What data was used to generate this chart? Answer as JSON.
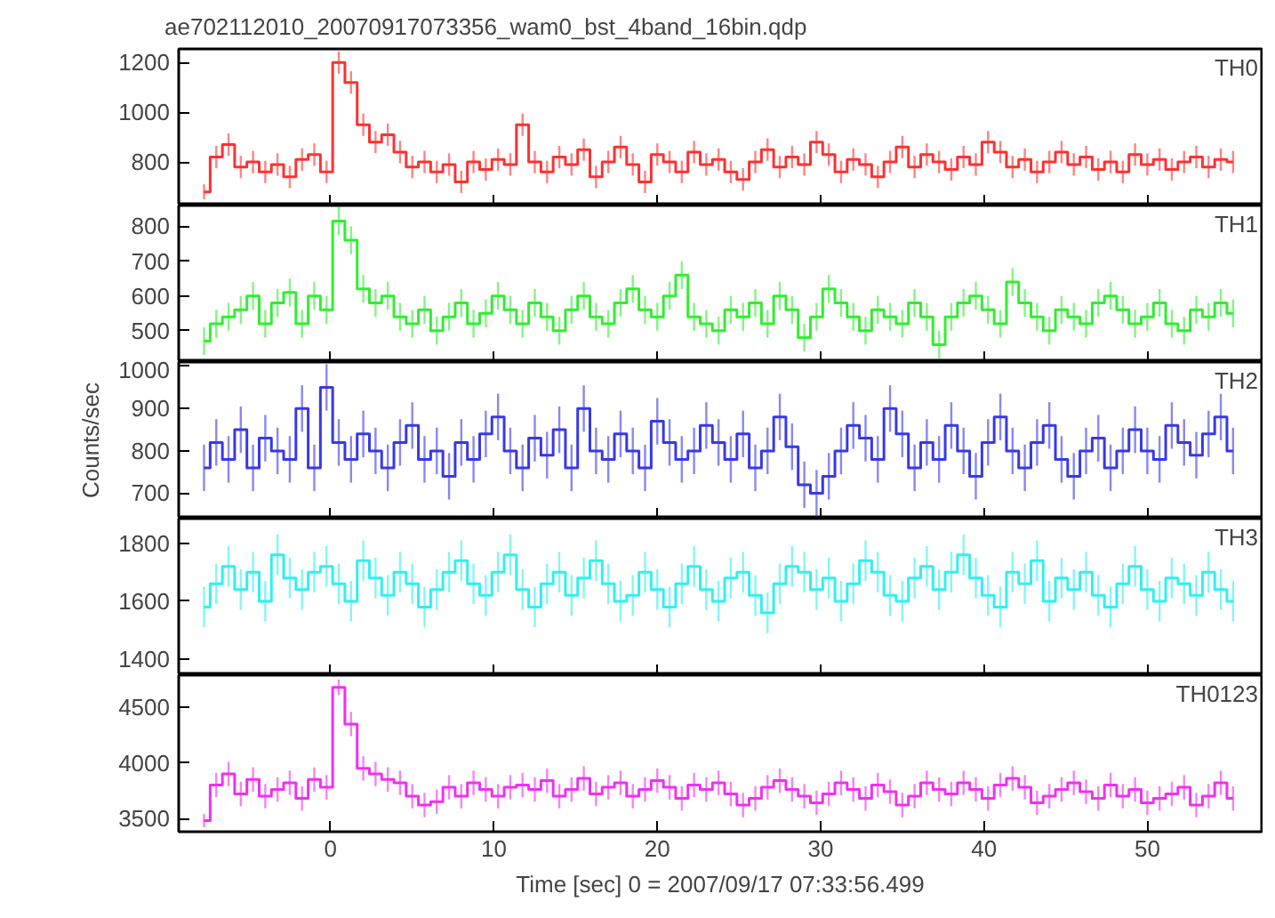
{
  "chart_data": [
    {
      "type": "step",
      "title": "ae702112010_20070917073356_wam0_bst_4band_16bin.qdp",
      "x": [
        -7.75,
        -7,
        -6.25,
        -5.5,
        -4.75,
        -4,
        -3.25,
        -2.5,
        -1.75,
        -1,
        -0.25,
        0.5,
        1.25,
        2,
        2.75,
        3.5,
        4.25,
        5,
        5.75,
        6.5,
        7.25,
        8,
        8.75,
        9.5,
        10.25,
        11,
        11.75,
        12.5,
        13.25,
        14,
        14.75,
        15.5,
        16.25,
        17,
        17.75,
        18.5,
        19.25,
        20,
        20.75,
        21.5,
        22.25,
        23,
        23.75,
        24.5,
        25.25,
        26,
        26.75,
        27.5,
        28.25,
        29,
        29.75,
        30.5,
        31.25,
        32,
        32.75,
        33.5,
        34.25,
        35,
        35.75,
        36.5,
        37.25,
        38,
        38.75,
        39.5,
        40.25,
        41,
        41.75,
        42.5,
        43.25,
        44,
        44.75,
        45.5,
        46.25,
        47,
        47.75,
        48.5,
        49.25,
        50,
        50.75,
        51.5,
        52.25,
        53,
        53.75,
        54.5,
        55.25
      ],
      "xlim": [
        -9.3,
        57
      ],
      "xticks": [
        0,
        10,
        20,
        30,
        40,
        50
      ],
      "ylim": [
        625,
        1255
      ],
      "yticks": [
        800,
        1000,
        1200
      ],
      "tick_labels": "y",
      "legend": "top right",
      "grid": false,
      "series": [
        {
          "name": "TH0",
          "color": "#ff3030",
          "values": [
            680,
            820,
            870,
            780,
            800,
            760,
            790,
            740,
            810,
            830,
            760,
            1200,
            1120,
            950,
            880,
            910,
            840,
            780,
            800,
            760,
            790,
            720,
            800,
            770,
            810,
            790,
            950,
            800,
            760,
            820,
            790,
            850,
            740,
            800,
            860,
            790,
            720,
            830,
            800,
            760,
            840,
            790,
            810,
            760,
            730,
            800,
            850,
            780,
            820,
            790,
            880,
            830,
            760,
            810,
            790,
            740,
            800,
            860,
            780,
            830,
            800,
            770,
            820,
            790,
            880,
            840,
            780,
            810,
            760,
            800,
            840,
            790,
            820,
            770,
            800,
            760,
            830,
            790,
            810,
            770,
            800,
            820,
            780,
            810,
            800
          ],
          "errors": [
            30,
            45,
            45,
            45,
            45,
            45,
            45,
            45,
            45,
            45,
            45,
            45,
            45,
            45,
            45,
            45,
            45,
            45,
            45,
            45,
            45,
            45,
            45,
            45,
            45,
            45,
            45,
            45,
            45,
            45,
            45,
            45,
            45,
            45,
            45,
            45,
            45,
            45,
            45,
            45,
            45,
            45,
            45,
            45,
            45,
            45,
            45,
            45,
            45,
            45,
            45,
            45,
            45,
            45,
            45,
            45,
            45,
            45,
            45,
            45,
            45,
            45,
            45,
            45,
            45,
            45,
            45,
            45,
            45,
            45,
            45,
            45,
            45,
            45,
            45,
            45,
            45,
            45,
            45,
            45,
            45,
            45,
            45,
            45,
            45
          ]
        }
      ]
    },
    {
      "type": "step",
      "x": [
        -7.75,
        -7,
        -6.25,
        -5.5,
        -4.75,
        -4,
        -3.25,
        -2.5,
        -1.75,
        -1,
        -0.25,
        0.5,
        1.25,
        2,
        2.75,
        3.5,
        4.25,
        5,
        5.75,
        6.5,
        7.25,
        8,
        8.75,
        9.5,
        10.25,
        11,
        11.75,
        12.5,
        13.25,
        14,
        14.75,
        15.5,
        16.25,
        17,
        17.75,
        18.5,
        19.25,
        20,
        20.75,
        21.5,
        22.25,
        23,
        23.75,
        24.5,
        25.25,
        26,
        26.75,
        27.5,
        28.25,
        29,
        29.75,
        30.5,
        31.25,
        32,
        32.75,
        33.5,
        34.25,
        35,
        35.75,
        36.5,
        37.25,
        38,
        38.75,
        39.5,
        40.25,
        41,
        41.75,
        42.5,
        43.25,
        44,
        44.75,
        45.5,
        46.25,
        47,
        47.75,
        48.5,
        49.25,
        50,
        50.75,
        51.5,
        52.25,
        53,
        53.75,
        54.5,
        55.25
      ],
      "xlim": [
        -9.3,
        57
      ],
      "xticks": [
        0,
        10,
        20,
        30,
        40,
        50
      ],
      "ylim": [
        410,
        860
      ],
      "yticks": [
        500,
        600,
        700,
        800
      ],
      "tick_labels": "y",
      "legend": "top right",
      "grid": false,
      "series": [
        {
          "name": "TH1",
          "color": "#30ee30",
          "values": [
            470,
            520,
            540,
            560,
            600,
            520,
            580,
            610,
            520,
            600,
            560,
            815,
            760,
            620,
            580,
            600,
            540,
            520,
            560,
            500,
            540,
            580,
            520,
            550,
            600,
            560,
            520,
            580,
            540,
            500,
            560,
            600,
            540,
            520,
            580,
            620,
            560,
            540,
            600,
            660,
            540,
            520,
            500,
            560,
            540,
            580,
            520,
            600,
            560,
            480,
            540,
            620,
            580,
            540,
            500,
            560,
            540,
            520,
            580,
            540,
            460,
            540,
            580,
            600,
            560,
            520,
            640,
            580,
            540,
            500,
            560,
            540,
            520,
            580,
            600,
            560,
            520,
            540,
            580,
            520,
            500,
            560,
            540,
            580,
            550
          ],
          "errors": [
            40,
            40,
            40,
            40,
            40,
            40,
            40,
            40,
            40,
            40,
            40,
            40,
            40,
            40,
            40,
            40,
            40,
            40,
            40,
            40,
            40,
            40,
            40,
            40,
            40,
            40,
            40,
            40,
            40,
            40,
            40,
            40,
            40,
            40,
            40,
            40,
            40,
            40,
            40,
            40,
            40,
            40,
            40,
            40,
            40,
            40,
            40,
            40,
            40,
            40,
            40,
            40,
            40,
            40,
            40,
            40,
            40,
            40,
            40,
            40,
            40,
            40,
            40,
            40,
            40,
            40,
            40,
            40,
            40,
            40,
            40,
            40,
            40,
            40,
            40,
            40,
            40,
            40,
            40,
            40,
            40,
            40,
            40,
            40,
            40
          ]
        }
      ]
    },
    {
      "type": "step",
      "ylabel": "Counts/sec",
      "x": [
        -7.75,
        -7,
        -6.25,
        -5.5,
        -4.75,
        -4,
        -3.25,
        -2.5,
        -1.75,
        -1,
        -0.25,
        0.5,
        1.25,
        2,
        2.75,
        3.5,
        4.25,
        5,
        5.75,
        6.5,
        7.25,
        8,
        8.75,
        9.5,
        10.25,
        11,
        11.75,
        12.5,
        13.25,
        14,
        14.75,
        15.5,
        16.25,
        17,
        17.75,
        18.5,
        19.25,
        20,
        20.75,
        21.5,
        22.25,
        23,
        23.75,
        24.5,
        25.25,
        26,
        26.75,
        27.5,
        28.25,
        29,
        29.75,
        30.5,
        31.25,
        32,
        32.75,
        33.5,
        34.25,
        35,
        35.75,
        36.5,
        37.25,
        38,
        38.75,
        39.5,
        40.25,
        41,
        41.75,
        42.5,
        43.25,
        44,
        44.75,
        45.5,
        46.25,
        47,
        47.75,
        48.5,
        49.25,
        50,
        50.75,
        51.5,
        52.25,
        53,
        53.75,
        54.5,
        55.25
      ],
      "xlim": [
        -9.3,
        57
      ],
      "xticks": [
        0,
        10,
        20,
        30,
        40,
        50
      ],
      "ylim": [
        640,
        1010
      ],
      "yticks": [
        700,
        800,
        900,
        1000
      ],
      "tick_labels": "y",
      "legend": "top right",
      "grid": false,
      "series": [
        {
          "name": "TH2",
          "color": "#3838e8",
          "values": [
            760,
            820,
            780,
            850,
            760,
            830,
            800,
            780,
            900,
            760,
            950,
            820,
            780,
            840,
            800,
            760,
            820,
            860,
            780,
            800,
            740,
            820,
            780,
            840,
            880,
            800,
            760,
            830,
            790,
            850,
            760,
            900,
            800,
            780,
            840,
            800,
            760,
            870,
            820,
            780,
            800,
            860,
            820,
            780,
            840,
            760,
            800,
            880,
            810,
            720,
            700,
            740,
            800,
            860,
            830,
            780,
            900,
            840,
            760,
            820,
            780,
            860,
            800,
            740,
            820,
            880,
            800,
            760,
            820,
            860,
            780,
            740,
            800,
            830,
            760,
            800,
            850,
            800,
            780,
            860,
            820,
            790,
            840,
            880,
            800
          ],
          "errors": [
            55,
            55,
            55,
            55,
            55,
            55,
            55,
            55,
            55,
            55,
            55,
            55,
            55,
            55,
            55,
            55,
            55,
            55,
            55,
            55,
            55,
            55,
            55,
            55,
            55,
            55,
            55,
            55,
            55,
            55,
            55,
            55,
            55,
            55,
            55,
            55,
            55,
            55,
            55,
            55,
            55,
            55,
            55,
            55,
            55,
            55,
            55,
            55,
            55,
            55,
            55,
            55,
            55,
            55,
            55,
            55,
            55,
            55,
            55,
            55,
            55,
            55,
            55,
            55,
            55,
            55,
            55,
            55,
            55,
            55,
            55,
            55,
            55,
            55,
            55,
            55,
            55,
            55,
            55,
            55,
            55,
            55,
            55,
            55,
            55
          ]
        }
      ]
    },
    {
      "type": "step",
      "x": [
        -7.75,
        -7,
        -6.25,
        -5.5,
        -4.75,
        -4,
        -3.25,
        -2.5,
        -1.75,
        -1,
        -0.25,
        0.5,
        1.25,
        2,
        2.75,
        3.5,
        4.25,
        5,
        5.75,
        6.5,
        7.25,
        8,
        8.75,
        9.5,
        10.25,
        11,
        11.75,
        12.5,
        13.25,
        14,
        14.75,
        15.5,
        16.25,
        17,
        17.75,
        18.5,
        19.25,
        20,
        20.75,
        21.5,
        22.25,
        23,
        23.75,
        24.5,
        25.25,
        26,
        26.75,
        27.5,
        28.25,
        29,
        29.75,
        30.5,
        31.25,
        32,
        32.75,
        33.5,
        34.25,
        35,
        35.75,
        36.5,
        37.25,
        38,
        38.75,
        39.5,
        40.25,
        41,
        41.75,
        42.5,
        43.25,
        44,
        44.75,
        45.5,
        46.25,
        47,
        47.75,
        48.5,
        49.25,
        50,
        50.75,
        51.5,
        52.25,
        53,
        53.75,
        54.5,
        55.25
      ],
      "xlim": [
        -9.3,
        57
      ],
      "xticks": [
        0,
        10,
        20,
        30,
        40,
        50
      ],
      "ylim": [
        1345,
        1885
      ],
      "yticks": [
        1400,
        1600,
        1800
      ],
      "tick_labels": "y",
      "legend": "top right",
      "grid": false,
      "series": [
        {
          "name": "TH3",
          "color": "#30f0f0",
          "values": [
            1580,
            1660,
            1720,
            1640,
            1700,
            1600,
            1760,
            1680,
            1640,
            1700,
            1720,
            1660,
            1600,
            1740,
            1680,
            1620,
            1700,
            1660,
            1580,
            1640,
            1700,
            1740,
            1660,
            1620,
            1700,
            1760,
            1640,
            1580,
            1660,
            1700,
            1620,
            1680,
            1740,
            1660,
            1600,
            1620,
            1700,
            1640,
            1580,
            1660,
            1720,
            1640,
            1600,
            1680,
            1700,
            1620,
            1560,
            1660,
            1720,
            1700,
            1640,
            1680,
            1600,
            1660,
            1740,
            1700,
            1620,
            1600,
            1680,
            1720,
            1640,
            1700,
            1760,
            1680,
            1620,
            1580,
            1700,
            1660,
            1740,
            1600,
            1680,
            1640,
            1700,
            1620,
            1580,
            1660,
            1720,
            1640,
            1600,
            1680,
            1660,
            1620,
            1700,
            1640,
            1600
          ],
          "errors": [
            70,
            70,
            70,
            70,
            70,
            70,
            70,
            70,
            70,
            70,
            70,
            70,
            70,
            70,
            70,
            70,
            70,
            70,
            70,
            70,
            70,
            70,
            70,
            70,
            70,
            70,
            70,
            70,
            70,
            70,
            70,
            70,
            70,
            70,
            70,
            70,
            70,
            70,
            70,
            70,
            70,
            70,
            70,
            70,
            70,
            70,
            70,
            70,
            70,
            70,
            70,
            70,
            70,
            70,
            70,
            70,
            70,
            70,
            70,
            70,
            70,
            70,
            70,
            70,
            70,
            70,
            70,
            70,
            70,
            70,
            70,
            70,
            70,
            70,
            70,
            70,
            70,
            70,
            70,
            70,
            70,
            70,
            70,
            70,
            70
          ]
        }
      ]
    },
    {
      "type": "step",
      "xlabel": "Time [sec] 0 = 2007/09/17 07:33:56.499",
      "x": [
        -7.75,
        -7,
        -6.25,
        -5.5,
        -4.75,
        -4,
        -3.25,
        -2.5,
        -1.75,
        -1,
        -0.25,
        0.5,
        1.25,
        2,
        2.75,
        3.5,
        4.25,
        5,
        5.75,
        6.5,
        7.25,
        8,
        8.75,
        9.5,
        10.25,
        11,
        11.75,
        12.5,
        13.25,
        14,
        14.75,
        15.5,
        16.25,
        17,
        17.75,
        18.5,
        19.25,
        20,
        20.75,
        21.5,
        22.25,
        23,
        23.75,
        24.5,
        25.25,
        26,
        26.75,
        27.5,
        28.25,
        29,
        29.75,
        30.5,
        31.25,
        32,
        32.75,
        33.5,
        34.25,
        35,
        35.75,
        36.5,
        37.25,
        38,
        38.75,
        39.5,
        40.25,
        41,
        41.75,
        42.5,
        43.25,
        44,
        44.75,
        45.5,
        46.25,
        47,
        47.75,
        48.5,
        49.25,
        50,
        50.75,
        51.5,
        52.25,
        53,
        53.75,
        54.5,
        55.25
      ],
      "xlim": [
        -9.3,
        57
      ],
      "xticks": [
        0,
        10,
        20,
        30,
        40,
        50
      ],
      "ylim": [
        3380,
        4790
      ],
      "yticks": [
        3500,
        4000,
        4500
      ],
      "legend": "top right",
      "grid": false,
      "series": [
        {
          "name": "TH0123",
          "color": "#f030f0",
          "values": [
            3480,
            3800,
            3900,
            3720,
            3850,
            3700,
            3760,
            3820,
            3680,
            3850,
            3780,
            4680,
            4350,
            3950,
            3900,
            3850,
            3820,
            3700,
            3620,
            3650,
            3780,
            3700,
            3820,
            3760,
            3700,
            3780,
            3800,
            3760,
            3840,
            3700,
            3760,
            3860,
            3720,
            3780,
            3820,
            3700,
            3760,
            3840,
            3780,
            3680,
            3800,
            3760,
            3820,
            3720,
            3620,
            3680,
            3780,
            3840,
            3760,
            3700,
            3640,
            3720,
            3820,
            3760,
            3680,
            3800,
            3740,
            3620,
            3700,
            3820,
            3760,
            3720,
            3820,
            3760,
            3680,
            3800,
            3860,
            3780,
            3640,
            3700,
            3760,
            3820,
            3740,
            3680,
            3800,
            3700,
            3760,
            3640,
            3680,
            3720,
            3780,
            3620,
            3700,
            3820,
            3680
          ],
          "errors": [
            60,
            110,
            110,
            110,
            110,
            110,
            110,
            110,
            110,
            110,
            110,
            70,
            110,
            110,
            110,
            110,
            110,
            110,
            110,
            110,
            110,
            110,
            110,
            110,
            110,
            110,
            110,
            110,
            110,
            110,
            110,
            110,
            110,
            110,
            110,
            110,
            110,
            110,
            110,
            110,
            110,
            110,
            110,
            110,
            110,
            110,
            110,
            110,
            110,
            110,
            110,
            110,
            110,
            110,
            110,
            110,
            110,
            110,
            110,
            110,
            110,
            110,
            110,
            110,
            110,
            110,
            110,
            110,
            110,
            110,
            110,
            110,
            110,
            110,
            110,
            110,
            110,
            110,
            110,
            110,
            110,
            110,
            110,
            110,
            110
          ]
        }
      ]
    }
  ]
}
